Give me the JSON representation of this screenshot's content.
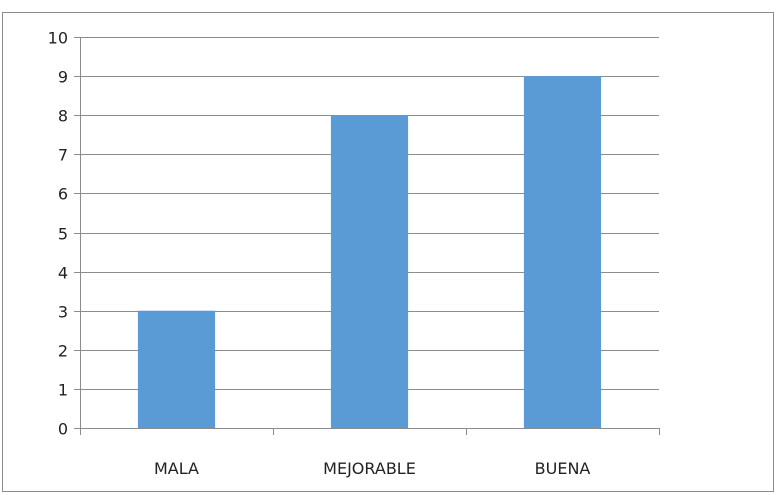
{
  "chart_data": {
    "type": "bar",
    "title": "",
    "xlabel": "",
    "ylabel": "",
    "categories": [
      "MALA",
      "MEJORABLE",
      "BUENA"
    ],
    "values": [
      3,
      8,
      9
    ],
    "ylim": [
      0,
      10
    ],
    "yticks": [
      0,
      1,
      2,
      3,
      4,
      5,
      6,
      7,
      8,
      9,
      10
    ],
    "grid": true,
    "legend": "none",
    "bar_color": "#5b9bd5",
    "grid_color": "#8c8c8c",
    "axis_color": "#8c8c8c",
    "text_color": "#222222"
  }
}
